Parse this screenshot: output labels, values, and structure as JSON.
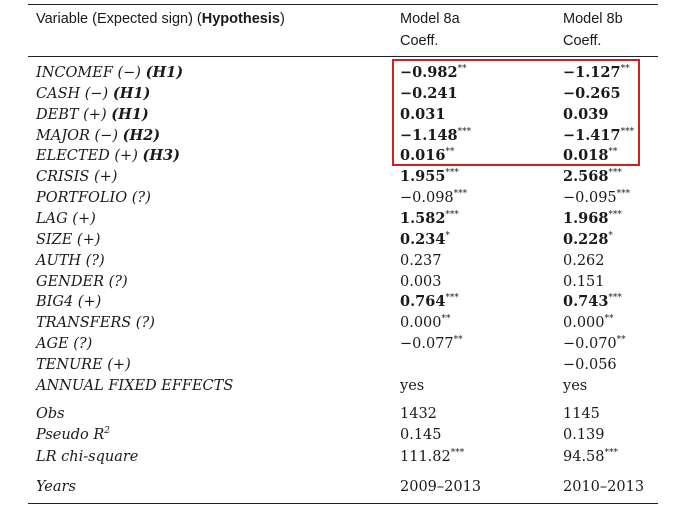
{
  "header": {
    "variable_prefix": "Variable (Expected sign) (",
    "variable_bold": "Hypothesis",
    "variable_suffix": ")",
    "model_a": "Model 8a",
    "model_b": "Model 8b",
    "coeff_a": "Coeff.",
    "coeff_b": "Coeff."
  },
  "rows": [
    {
      "label": "INCOMEF (−) ",
      "hyp": "(H1)",
      "a": "−0.982",
      "a_sig": "**",
      "a_bold": true,
      "b": "−1.127",
      "b_sig": "**",
      "b_bold": true
    },
    {
      "label": "CASH (−) ",
      "hyp": "(H1)",
      "a": "−0.241",
      "a_sig": "",
      "a_bold": true,
      "b": "−0.265",
      "b_sig": "",
      "b_bold": true
    },
    {
      "label": "DEBT (+) ",
      "hyp": "(H1)",
      "a": "0.031",
      "a_sig": "",
      "a_bold": true,
      "b": "0.039",
      "b_sig": "",
      "b_bold": true
    },
    {
      "label": "MAJOR (−) ",
      "hyp": "(H2)",
      "a": "−1.148",
      "a_sig": "***",
      "a_bold": true,
      "b": "−1.417",
      "b_sig": "***",
      "b_bold": true
    },
    {
      "label": "ELECTED (+) ",
      "hyp": "(H3)",
      "a": "0.016",
      "a_sig": "**",
      "a_bold": true,
      "b": "0.018",
      "b_sig": "**",
      "b_bold": true
    },
    {
      "label": "CRISIS (+)",
      "hyp": "",
      "a": "1.955",
      "a_sig": "***",
      "a_bold": true,
      "b": "2.568",
      "b_sig": "***",
      "b_bold": true
    },
    {
      "label": "PORTFOLIO (?)",
      "hyp": "",
      "a": "−0.098",
      "a_sig": "***",
      "a_bold": false,
      "b": "−0.095",
      "b_sig": "***",
      "b_bold": false
    },
    {
      "label": "LAG (+)",
      "hyp": "",
      "a": "1.582",
      "a_sig": "***",
      "a_bold": true,
      "b": "1.968",
      "b_sig": "***",
      "b_bold": true
    },
    {
      "label": "SIZE (+)",
      "hyp": "",
      "a": "0.234",
      "a_sig": "*",
      "a_bold": true,
      "b": "0.228",
      "b_sig": "*",
      "b_bold": true
    },
    {
      "label": "AUTH (?)",
      "hyp": "",
      "a": "0.237",
      "a_sig": "",
      "a_bold": false,
      "b": "0.262",
      "b_sig": "",
      "b_bold": false
    },
    {
      "label": "GENDER (?)",
      "hyp": "",
      "a": "0.003",
      "a_sig": "",
      "a_bold": false,
      "b": "0.151",
      "b_sig": "",
      "b_bold": false
    },
    {
      "label": "BIG4 (+)",
      "hyp": "",
      "a": "0.764",
      "a_sig": "***",
      "a_bold": true,
      "b": "0.743",
      "b_sig": "***",
      "b_bold": true
    },
    {
      "label": "TRANSFERS (?)",
      "hyp": "",
      "a": "0.000",
      "a_sig": "**",
      "a_bold": false,
      "b": "0.000",
      "b_sig": "**",
      "b_bold": false
    },
    {
      "label": "AGE (?)",
      "hyp": "",
      "a": "−0.077",
      "a_sig": "**",
      "a_bold": false,
      "b": "−0.070",
      "b_sig": "**",
      "b_bold": false
    },
    {
      "label": "TENURE (+)",
      "hyp": "",
      "a": "",
      "a_sig": "",
      "a_bold": false,
      "b": "−0.056",
      "b_sig": "",
      "b_bold": false
    },
    {
      "label": "ANNUAL FIXED EFFECTS",
      "hyp": "",
      "a": "yes",
      "a_sig": "",
      "a_bold": false,
      "b": "yes",
      "b_sig": "",
      "b_bold": false
    }
  ],
  "stats": [
    {
      "label": "Obs",
      "a": "1432",
      "a_sig": "",
      "b": "1145",
      "b_sig": ""
    },
    {
      "label": "Pseudo R",
      "label_sup": "2",
      "a": "0.145",
      "a_sig": "",
      "b": "0.139",
      "b_sig": ""
    },
    {
      "label": "LR chi-square",
      "a": "111.82",
      "a_sig": "***",
      "b": "94.58",
      "b_sig": "***"
    }
  ],
  "years": {
    "label": "Years",
    "a": "2009–2013",
    "b": "2010–2013"
  },
  "highlight_color": "#d02020"
}
